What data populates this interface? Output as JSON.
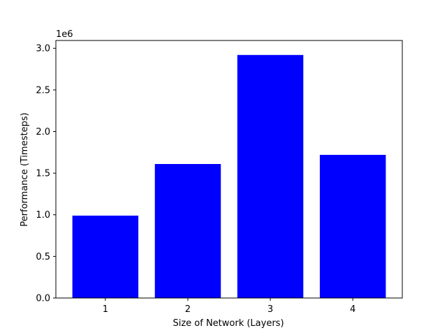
{
  "chart_data": {
    "type": "bar",
    "categories": [
      "1",
      "2",
      "3",
      "4"
    ],
    "values": [
      990000,
      1610000,
      2920000,
      1720000
    ],
    "xlabel": "Size of Network (Layers)",
    "ylabel": "Performance (Timesteps)",
    "y_offset_label": "1e6",
    "y_ticks": [
      0,
      500000,
      1000000,
      1500000,
      2000000,
      2500000,
      3000000
    ],
    "y_tick_labels": [
      "0.0",
      "0.5",
      "1.0",
      "1.5",
      "2.0",
      "2.5",
      "3.0"
    ],
    "ylim": [
      0,
      3000000
    ],
    "bar_color": "#0000ff",
    "grid": false,
    "legend": "none"
  }
}
